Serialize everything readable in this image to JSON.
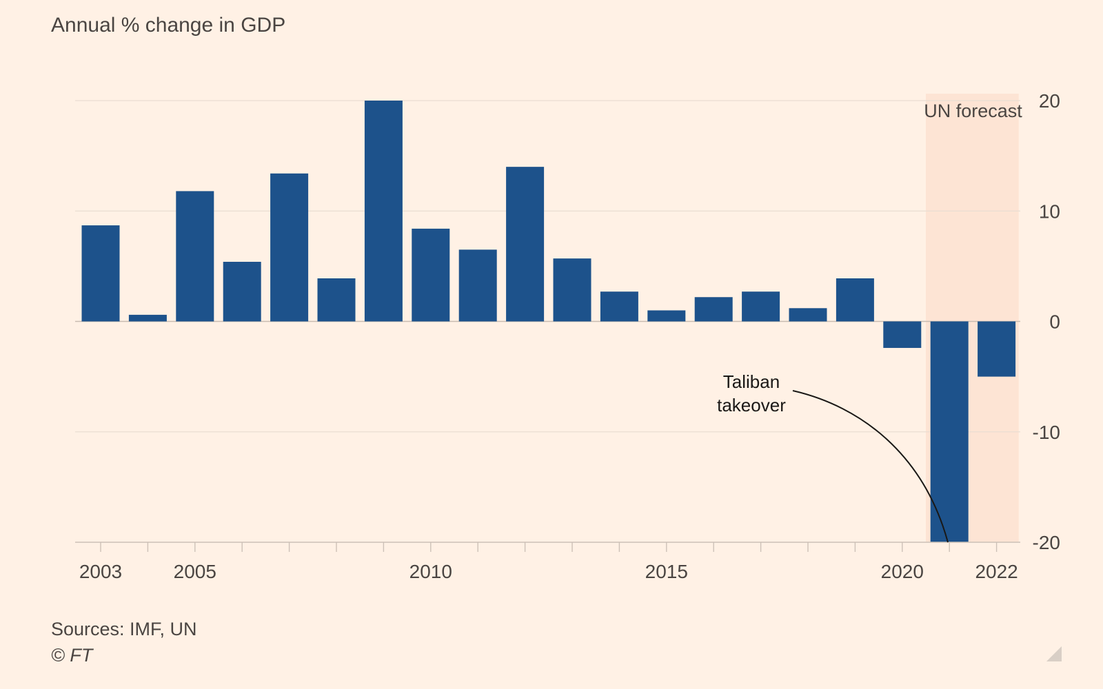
{
  "title": "Annual % change in GDP",
  "sources": "Sources: IMF, UN",
  "copyright": "© FT",
  "colors": {
    "background": "#fff1e5",
    "bar": "#1d528b",
    "forecast_band": "#fde4d4",
    "grid": "#e9ddd2",
    "axis": "#ccc1b7",
    "text": "#4a4542"
  },
  "chart_data": {
    "type": "bar",
    "categories": [
      "2003",
      "2004",
      "2005",
      "2006",
      "2007",
      "2008",
      "2009",
      "2010",
      "2011",
      "2012",
      "2013",
      "2014",
      "2015",
      "2016",
      "2017",
      "2018",
      "2019",
      "2020",
      "2021",
      "2022"
    ],
    "values": [
      8.7,
      0.6,
      11.8,
      5.4,
      13.4,
      3.9,
      20.6,
      8.4,
      6.5,
      14.0,
      5.7,
      2.7,
      1.0,
      2.2,
      2.7,
      1.2,
      3.9,
      -2.4,
      -20.7,
      -5.0
    ],
    "x_tick_labels": [
      "2003",
      "2005",
      "2010",
      "2015",
      "2020",
      "2022"
    ],
    "y_ticks": [
      20,
      10,
      0,
      -10,
      -20
    ],
    "y_tick_labels": [
      "20",
      "10",
      "0",
      "-10",
      "-20"
    ],
    "ylim": [
      -20,
      20
    ],
    "y_axis_position": "right",
    "forecast": {
      "label": "UN forecast",
      "from": "2021",
      "to": "2022"
    },
    "annotation": {
      "lines": [
        "Taliban",
        "takeover"
      ],
      "target": "2021"
    }
  }
}
